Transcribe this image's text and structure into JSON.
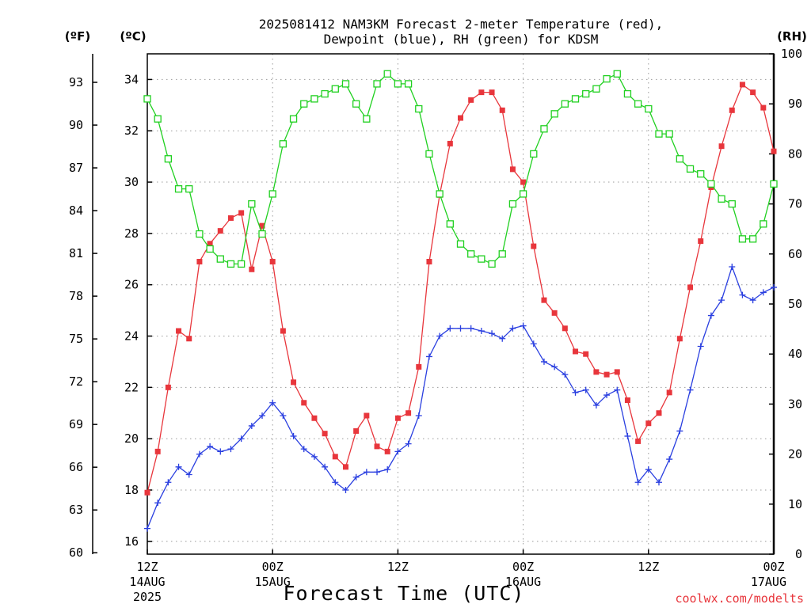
{
  "chart_data": {
    "type": "line",
    "title_lines": [
      "2025081412 NAM3KM Forecast 2-meter Temperature (red),",
      "Dewpoint (blue), RH (green) for KDSM"
    ],
    "xlabel": "Forecast Time (UTC)",
    "credit": "coolwx.com/modelts",
    "x_ticks": [
      {
        "hour": 0,
        "lines": [
          "12Z",
          "14AUG",
          "2025"
        ]
      },
      {
        "hour": 12,
        "lines": [
          "00Z",
          "15AUG"
        ]
      },
      {
        "hour": 24,
        "lines": [
          "12Z"
        ]
      },
      {
        "hour": 36,
        "lines": [
          "00Z",
          "16AUG"
        ]
      },
      {
        "hour": 48,
        "lines": [
          "12Z"
        ]
      },
      {
        "hour": 60,
        "lines": [
          "00Z",
          "17AUG"
        ]
      }
    ],
    "x_range": [
      0,
      60
    ],
    "axes": {
      "fahrenheit": {
        "label": "(ºF)",
        "ticks": [
          60,
          63,
          66,
          69,
          72,
          75,
          78,
          81,
          84,
          87,
          90,
          93
        ]
      },
      "celsius": {
        "label": "(ºC)",
        "range": [
          15.5,
          35
        ],
        "ticks": [
          16,
          18,
          20,
          22,
          24,
          26,
          28,
          30,
          32,
          34
        ]
      },
      "rh": {
        "label": "(RH)",
        "range": [
          0,
          100
        ],
        "ticks": [
          0,
          10,
          20,
          30,
          40,
          50,
          60,
          70,
          80,
          90,
          100
        ]
      }
    },
    "grid": true,
    "series": [
      {
        "key": "temperature",
        "axis": "celsius",
        "color": "#e8363c",
        "marker": "filled-square",
        "values": [
          17.9,
          19.5,
          22.0,
          24.2,
          23.9,
          26.9,
          27.6,
          28.1,
          28.6,
          28.8,
          26.6,
          28.3,
          26.9,
          24.2,
          22.2,
          21.4,
          20.8,
          20.2,
          19.3,
          18.9,
          20.3,
          20.9,
          19.7,
          19.5,
          20.8,
          21.0,
          22.8,
          26.9,
          29.5,
          31.5,
          32.5,
          33.2,
          33.5,
          33.5,
          32.8,
          30.5,
          30.0,
          27.5,
          25.4,
          24.9,
          24.3,
          23.4,
          23.3,
          22.6,
          22.5,
          22.6,
          21.5,
          19.9,
          20.6,
          21.0,
          21.8,
          23.9,
          25.9,
          27.7,
          29.8,
          31.4,
          32.8,
          33.8,
          33.5,
          32.9,
          31.2
        ]
      },
      {
        "key": "dewpoint",
        "axis": "celsius",
        "color": "#2a3fe0",
        "marker": "plus",
        "values": [
          16.5,
          17.5,
          18.3,
          18.9,
          18.6,
          19.4,
          19.7,
          19.5,
          19.6,
          20.0,
          20.5,
          20.9,
          21.4,
          20.9,
          20.1,
          19.6,
          19.3,
          18.9,
          18.3,
          18.0,
          18.5,
          18.7,
          18.7,
          18.8,
          19.5,
          19.8,
          20.9,
          23.2,
          24.0,
          24.3,
          24.3,
          24.3,
          24.2,
          24.1,
          23.9,
          24.3,
          24.4,
          23.7,
          23.0,
          22.8,
          22.5,
          21.8,
          21.9,
          21.3,
          21.7,
          21.9,
          20.1,
          18.3,
          18.8,
          18.3,
          19.2,
          20.3,
          21.9,
          23.6,
          24.8,
          25.4,
          26.7,
          25.6,
          25.4,
          25.7,
          25.9
        ]
      },
      {
        "key": "rh",
        "axis": "rh",
        "color": "#20d020",
        "marker": "open-square",
        "values": [
          91,
          87,
          79,
          73,
          73,
          64,
          61,
          59,
          58,
          58,
          70,
          64,
          72,
          82,
          87,
          90,
          91,
          92,
          93,
          94,
          90,
          87,
          94,
          96,
          94,
          94,
          89,
          80,
          72,
          66,
          62,
          60,
          59,
          58,
          60,
          70,
          72,
          80,
          85,
          88,
          90,
          91,
          92,
          93,
          95,
          96,
          92,
          90,
          89,
          84,
          84,
          79,
          77,
          76,
          74,
          71,
          70,
          63,
          63,
          66,
          74
        ]
      }
    ]
  }
}
